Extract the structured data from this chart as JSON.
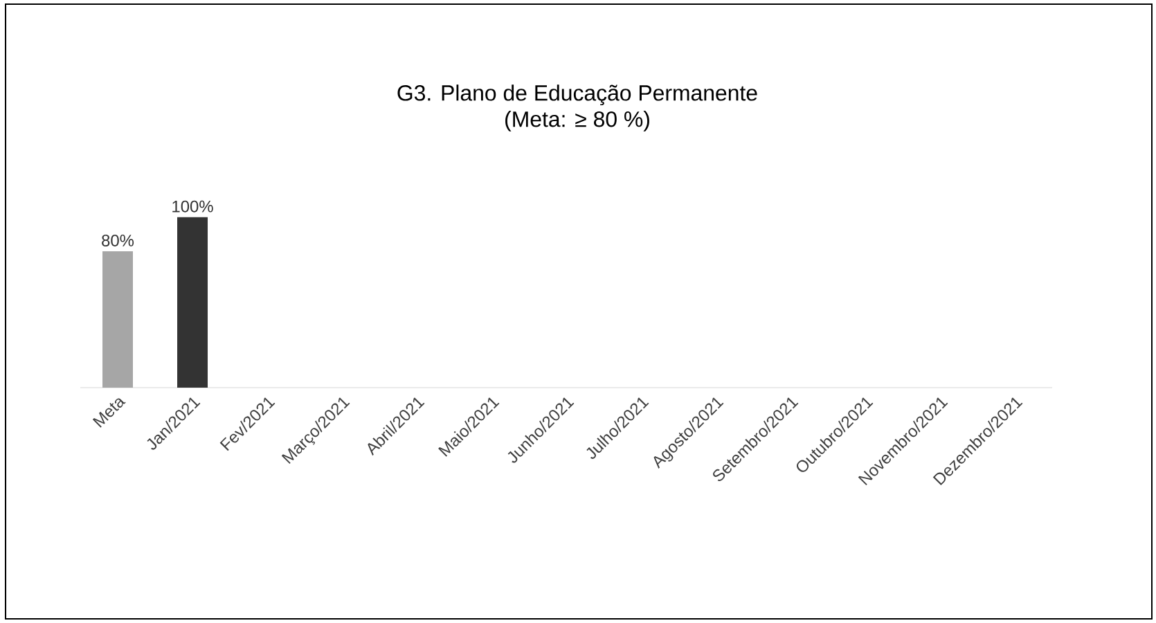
{
  "chart_data": {
    "type": "bar",
    "title": "G3. Plano de Educação Permanente",
    "subtitle": "(Meta: ≥ 80 %)",
    "categories": [
      "Meta",
      "Jan/2021",
      "Fev/2021",
      "Março/2021",
      "Abril/2021",
      "Maio/2021",
      "Junho/2021",
      "Julho/2021",
      "Agosto/2021",
      "Setembro/2021",
      "Outubro/2021",
      "Novembro/2021",
      "Dezembro/2021"
    ],
    "values": [
      80,
      100,
      null,
      null,
      null,
      null,
      null,
      null,
      null,
      null,
      null,
      null,
      null
    ],
    "value_labels": [
      "80%",
      "100%",
      null,
      null,
      null,
      null,
      null,
      null,
      null,
      null,
      null,
      null,
      null
    ],
    "colors": [
      "#a6a6a6",
      "#333333",
      "#333333",
      "#333333",
      "#333333",
      "#333333",
      "#333333",
      "#333333",
      "#333333",
      "#333333",
      "#333333",
      "#333333",
      "#333333"
    ]
  }
}
